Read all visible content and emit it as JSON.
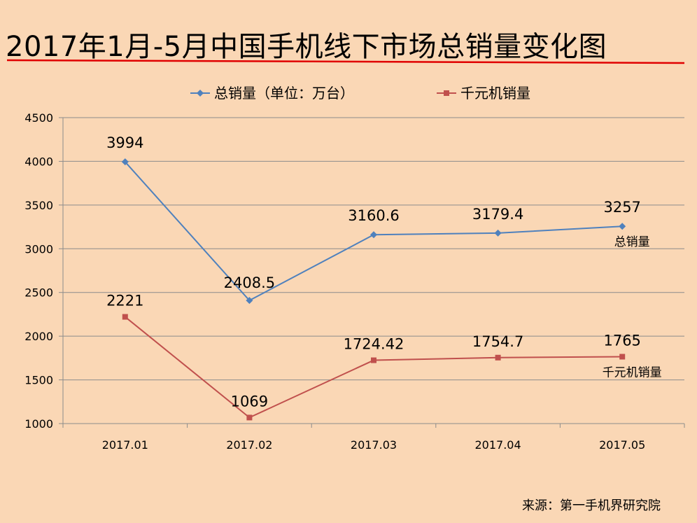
{
  "page": {
    "title": "2017年1月-5月中国手机线下市场总销量变化图",
    "source": "来源：第一手机界研究院"
  },
  "colors": {
    "background": "#FAD7B5",
    "title_rule": "#E00000",
    "total_series": "#4F81BD",
    "thousand_series": "#C0504D",
    "grid": "#8C8C8C"
  },
  "chart_data": {
    "type": "line",
    "title": "",
    "xlabel": "",
    "ylabel": "",
    "categories": [
      "2017.01",
      "2017.02",
      "2017.03",
      "2017.04",
      "2017.05"
    ],
    "ylim": [
      1000,
      4500
    ],
    "yticks": [
      1000,
      1500,
      2000,
      2500,
      3000,
      3500,
      4000,
      4500
    ],
    "grid": "horizontal",
    "legend_position": "top",
    "series": [
      {
        "name": "总销量（单位：万台）",
        "marker": "diamond",
        "values": [
          3994,
          2408.5,
          3160.6,
          3179.4,
          3257
        ],
        "labels": [
          "3994",
          "2408.5",
          "3160.6",
          "3179.4",
          "3257"
        ],
        "end_annotation": "总销量"
      },
      {
        "name": "千元机销量",
        "marker": "square",
        "values": [
          2221,
          1069,
          1724.42,
          1754.7,
          1765
        ],
        "labels": [
          "2221",
          "1069",
          "1724.42",
          "1754.7",
          "1765"
        ],
        "end_annotation": "千元机销量"
      }
    ]
  }
}
